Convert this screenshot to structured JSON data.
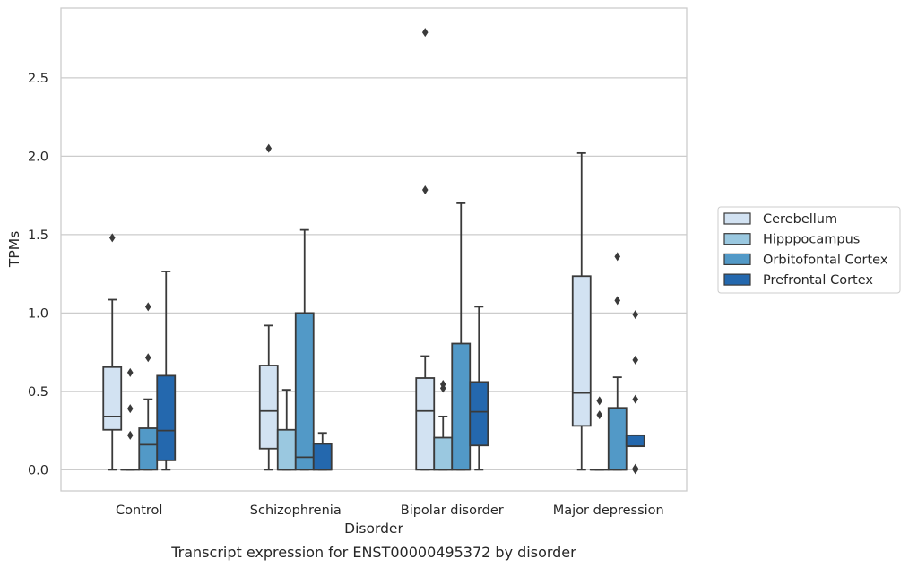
{
  "chart_data": {
    "type": "box",
    "caption": "Transcript expression for ENST00000495372 by disorder",
    "xlabel": "Disorder",
    "ylabel": "TPMs",
    "ylim": [
      -0.135,
      2.945
    ],
    "yticks": [
      "0.0",
      "0.5",
      "1.0",
      "1.5",
      "2.0",
      "2.5"
    ],
    "grid": "horizontal",
    "legend_position": "right",
    "categories": [
      "Control",
      "Schizophrenia",
      "Bipolar disorder",
      "Major depression"
    ],
    "series": [
      {
        "name": "Cerebellum",
        "color": "#d2e2f2",
        "boxes": [
          {
            "wlo": 0.0,
            "q1": 0.255,
            "med": 0.34,
            "q3": 0.655,
            "whi": 1.085,
            "outliers": [
              1.48
            ]
          },
          {
            "wlo": 0.0,
            "q1": 0.135,
            "med": 0.375,
            "q3": 0.665,
            "whi": 0.92,
            "outliers": [
              2.05
            ]
          },
          {
            "wlo": 0.0,
            "q1": 0.0,
            "med": 0.375,
            "q3": 0.585,
            "whi": 0.725,
            "outliers": [
              1.785,
              2.79
            ]
          },
          {
            "wlo": 0.0,
            "q1": 0.28,
            "med": 0.49,
            "q3": 1.235,
            "whi": 2.02,
            "outliers": []
          }
        ]
      },
      {
        "name": "Hipppocampus",
        "color": "#9ac8e0",
        "boxes": [
          {
            "wlo": 0.0,
            "q1": 0.0,
            "med": 0.0,
            "q3": 0.0,
            "whi": 0.0,
            "outliers": [
              0.22,
              0.39,
              0.62
            ]
          },
          {
            "wlo": 0.0,
            "q1": 0.0,
            "med": 0.0,
            "q3": 0.255,
            "whi": 0.51,
            "outliers": []
          },
          {
            "wlo": 0.0,
            "q1": 0.0,
            "med": 0.0,
            "q3": 0.205,
            "whi": 0.34,
            "outliers": [
              0.52,
              0.545
            ]
          },
          {
            "wlo": 0.0,
            "q1": 0.0,
            "med": 0.0,
            "q3": 0.0,
            "whi": 0.0,
            "outliers": [
              0.35,
              0.44
            ]
          }
        ]
      },
      {
        "name": "Orbitofontal Cortex",
        "color": "#5299c7",
        "boxes": [
          {
            "wlo": 0.0,
            "q1": 0.0,
            "med": 0.16,
            "q3": 0.265,
            "whi": 0.45,
            "outliers": [
              0.715,
              1.04
            ]
          },
          {
            "wlo": 0.0,
            "q1": 0.0,
            "med": 0.08,
            "q3": 1.0,
            "whi": 1.53,
            "outliers": []
          },
          {
            "wlo": 0.0,
            "q1": 0.0,
            "med": 0.0,
            "q3": 0.805,
            "whi": 1.7,
            "outliers": []
          },
          {
            "wlo": 0.0,
            "q1": 0.0,
            "med": 0.0,
            "q3": 0.395,
            "whi": 0.59,
            "outliers": [
              1.08,
              1.36
            ]
          }
        ]
      },
      {
        "name": "Prefrontal Cortex",
        "color": "#2468ae",
        "boxes": [
          {
            "wlo": 0.0,
            "q1": 0.06,
            "med": 0.25,
            "q3": 0.6,
            "whi": 1.265,
            "outliers": []
          },
          {
            "wlo": 0.0,
            "q1": 0.0,
            "med": 0.0,
            "q3": 0.165,
            "whi": 0.235,
            "outliers": []
          },
          {
            "wlo": 0.0,
            "q1": 0.155,
            "med": 0.37,
            "q3": 0.56,
            "whi": 1.04,
            "outliers": []
          },
          {
            "wlo": 0.15,
            "q1": 0.15,
            "med": 0.15,
            "q3": 0.22,
            "whi": 0.22,
            "outliers": [
              0.0,
              0.01,
              0.45,
              0.7,
              0.99
            ]
          }
        ]
      }
    ]
  }
}
